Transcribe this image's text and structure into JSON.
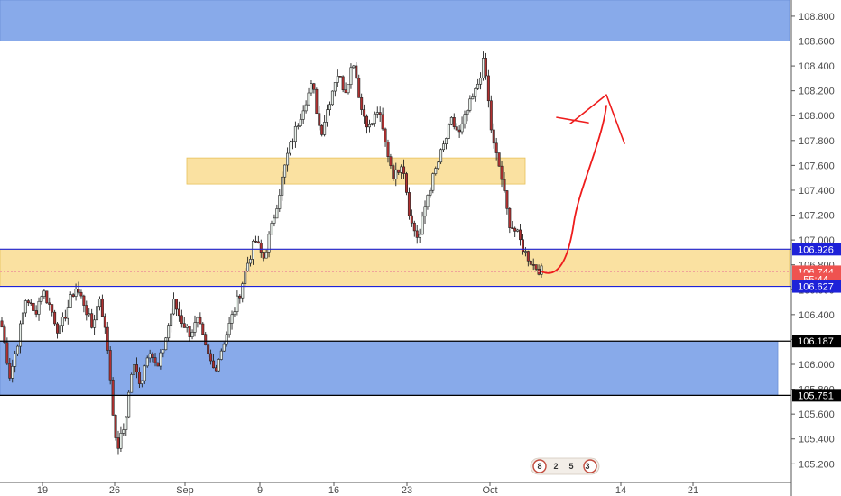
{
  "chart_data": {
    "type": "candlestick",
    "ylim": [
      105.05,
      108.93
    ],
    "x_ticks": [
      "19",
      "26",
      "Sep",
      "9",
      "16",
      "23",
      "Oct",
      "14",
      "21"
    ],
    "y_ticks": [
      "105.200",
      "105.400",
      "105.600",
      "105.800",
      "106.000",
      "106.200",
      "106.400",
      "106.600",
      "106.800",
      "107.000",
      "107.200",
      "107.400",
      "107.600",
      "107.800",
      "108.000",
      "108.200",
      "108.400",
      "108.600",
      "108.800"
    ],
    "y_tick_values": [
      105.2,
      105.4,
      105.6,
      105.8,
      106.0,
      106.2,
      106.4,
      106.6,
      106.8,
      107.0,
      107.2,
      107.4,
      107.6,
      107.8,
      108.0,
      108.2,
      108.4,
      108.6,
      108.8
    ],
    "price_labels": [
      {
        "text": "106.926",
        "value": 106.926,
        "color": "#1e22d8"
      },
      {
        "text": "106.744",
        "value": 106.744,
        "color": "#ef5350"
      },
      {
        "text": "55:44",
        "value": 106.685,
        "color": "#ef5350"
      },
      {
        "text": "106.627",
        "value": 106.627,
        "color": "#1e22d8"
      },
      {
        "text": "106.187",
        "value": 106.187,
        "color": "#000000"
      },
      {
        "text": "105.751",
        "value": 105.751,
        "color": "#000000"
      }
    ],
    "zones": [
      {
        "name": "blue-zone-top",
        "y1": 108.6,
        "y2": 108.93,
        "color": "#7ea3e8"
      },
      {
        "name": "yellow-zone-mid",
        "y1": 107.45,
        "y2": 107.66,
        "color": "#f9d98a"
      },
      {
        "name": "yellow-zone-current",
        "y1": 106.627,
        "y2": 106.926,
        "color": "#f9d98a"
      },
      {
        "name": "blue-zone-bottom",
        "y1": 105.751,
        "y2": 106.187,
        "color": "#7ea3e8"
      }
    ],
    "lines": [
      {
        "value": 106.926,
        "color": "#1e22d8"
      },
      {
        "value": 106.627,
        "color": "#1e22d8"
      },
      {
        "value": 106.187,
        "color": "#000000"
      },
      {
        "value": 105.751,
        "color": "#000000"
      }
    ],
    "current_price": 106.744,
    "candle_path": [
      106.3,
      105.9,
      106.2,
      106.55,
      106.4,
      106.6,
      106.45,
      106.25,
      106.45,
      106.62,
      106.5,
      106.3,
      106.55,
      106.1,
      105.3,
      105.5,
      106.0,
      105.85,
      106.15,
      105.95,
      106.2,
      106.5,
      106.35,
      106.25,
      106.35,
      106.1,
      105.95,
      106.15,
      106.35,
      106.55,
      106.8,
      107.0,
      106.85,
      107.1,
      107.4,
      107.7,
      107.9,
      108.1,
      108.25,
      107.85,
      108.1,
      108.35,
      108.2,
      108.45,
      108.05,
      107.9,
      108.05,
      107.75,
      107.5,
      107.65,
      107.15,
      107.0,
      107.35,
      107.55,
      107.75,
      107.95,
      107.85,
      108.05,
      108.2,
      108.45,
      107.8,
      107.55,
      107.15,
      107.05,
      106.9,
      106.8,
      106.75
    ],
    "arrow": {
      "from_value": 106.744,
      "to_value": 107.95,
      "color": "#ee1c1c"
    },
    "event_badge": [
      "8",
      "2",
      "5",
      "3"
    ]
  }
}
